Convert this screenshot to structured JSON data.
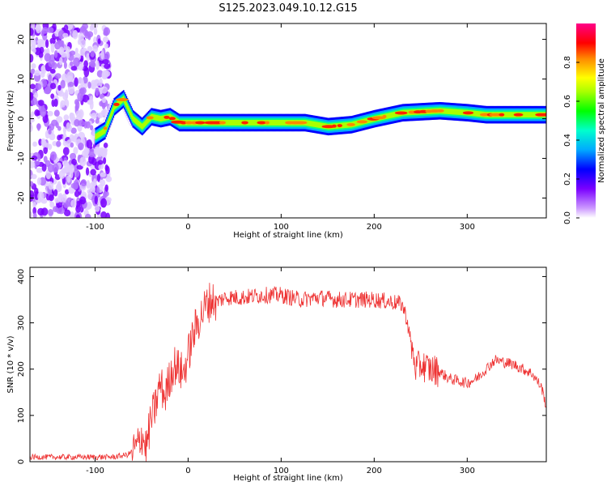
{
  "title": "S125.2023.049.10.12.G15",
  "colors": {
    "snr_line": "#ee3333",
    "axis": "#000000",
    "colormap": [
      "#ffffff",
      "#7a00ff",
      "#0000ff",
      "#00aaff",
      "#00ffcc",
      "#00ff00",
      "#aaff00",
      "#ffff00",
      "#ff8800",
      "#ff0000",
      "#ff00aa"
    ]
  },
  "chart_data": [
    {
      "type": "heatmap",
      "title": "",
      "xlabel": "Height of straight line (km)",
      "ylabel": "Frequency (Hz)",
      "xlim": [
        -170,
        385
      ],
      "ylim": [
        -25,
        24
      ],
      "xticks": [
        -100,
        0,
        100,
        200,
        300
      ],
      "yticks": [
        -20,
        -10,
        0,
        10,
        20
      ],
      "grid": false,
      "colorbar": {
        "label": "Normalized spectral amplitude",
        "range": [
          0,
          1
        ],
        "ticks": [
          "0.0",
          "0.2",
          "0.4",
          "0.6",
          "0.8"
        ]
      },
      "ridge": {
        "description_points_x": [
          -100,
          -90,
          -80,
          -70,
          -60,
          -50,
          -40,
          -30,
          -20,
          -10,
          0,
          50,
          100,
          125,
          150,
          175,
          200,
          230,
          270,
          300,
          320,
          385
        ],
        "description_points_y": [
          -4.5,
          -3.0,
          3.0,
          5.0,
          0.0,
          -2.0,
          0.5,
          0.0,
          0.5,
          -1.0,
          -1.0,
          -1.0,
          -1.0,
          -1.0,
          -2.0,
          -1.5,
          0.0,
          1.5,
          2.0,
          1.5,
          1.0,
          1.0
        ]
      }
    },
    {
      "type": "line",
      "title": "",
      "xlabel": "Height of straight line (km)",
      "ylabel": "SNR (10 * v/v)",
      "xlim": [
        -170,
        385
      ],
      "ylim": [
        0,
        420
      ],
      "xticks": [
        -100,
        0,
        100,
        200,
        300
      ],
      "yticks": [
        0,
        100,
        200,
        300,
        400
      ],
      "grid": false,
      "series": [
        {
          "x": [
            -170,
            -140,
            -110,
            -80,
            -65,
            -55,
            -50,
            -45,
            -40,
            -35,
            -30,
            -25,
            -20,
            -15,
            -10,
            -5,
            0,
            5,
            10,
            15,
            20,
            25,
            30,
            40,
            60,
            80,
            100,
            120,
            140,
            160,
            180,
            200,
            220,
            230,
            235,
            240,
            245,
            250,
            260,
            270,
            280,
            290,
            300,
            310,
            320,
            330,
            340,
            350,
            360,
            370,
            380,
            385
          ],
          "y": [
            10,
            10,
            10,
            10,
            15,
            30,
            60,
            30,
            90,
            120,
            170,
            140,
            180,
            210,
            200,
            190,
            230,
            270,
            300,
            320,
            340,
            350,
            345,
            355,
            355,
            360,
            360,
            350,
            355,
            350,
            350,
            350,
            345,
            340,
            310,
            250,
            200,
            210,
            200,
            195,
            180,
            175,
            170,
            180,
            200,
            220,
            215,
            210,
            200,
            190,
            160,
            120
          ]
        }
      ]
    }
  ]
}
